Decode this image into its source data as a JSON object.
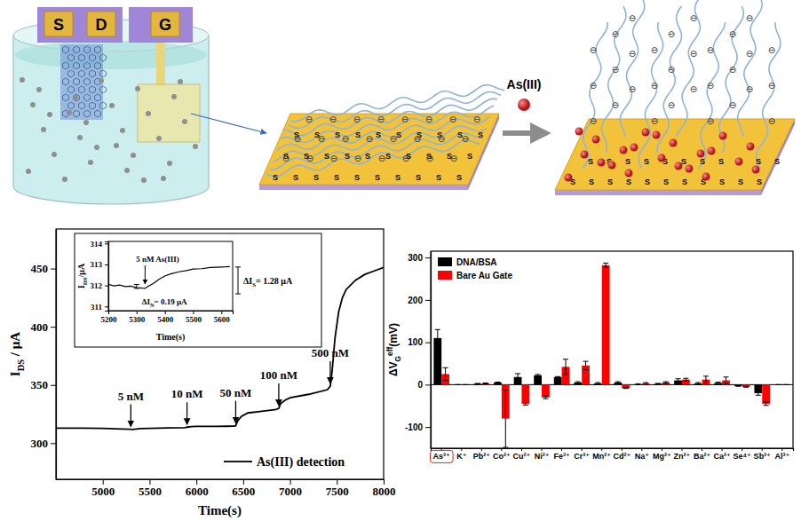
{
  "chart_data": [
    {
      "type": "line",
      "xlabel": "Time(s)",
      "ylabel": {
        "parts": [
          {
            "text": "I"
          },
          {
            "text": "DS",
            "sub": true
          },
          {
            "text": " / μA"
          }
        ]
      },
      "xlim": [
        4500,
        8000
      ],
      "xticks": [
        5000,
        5500,
        6000,
        6500,
        7000,
        7500,
        8000
      ],
      "ylim": [
        269,
        484
      ],
      "yticks": [
        300,
        350,
        400,
        450
      ],
      "legend": "lower right",
      "x": [
        4500,
        4800,
        5000,
        5200,
        5300,
        5320,
        5340,
        5400,
        5500,
        5600,
        5700,
        5880,
        5900,
        5950,
        6000,
        6200,
        6400,
        6420,
        6440,
        6480,
        6550,
        6700,
        6850,
        6880,
        6900,
        6950,
        7000,
        7200,
        7400,
        7430,
        7450,
        7480,
        7520,
        7560,
        7600,
        7700,
        7800,
        7900,
        8000
      ],
      "series": [
        {
          "name": "As(III) detection",
          "color": "#000000",
          "values": [
            313,
            313,
            312.8,
            312.2,
            312,
            311.8,
            312,
            312.5,
            312.8,
            313,
            313.2,
            313.3,
            313.8,
            314.3,
            314.5,
            314.5,
            314.6,
            315,
            319,
            323,
            326,
            327.5,
            329,
            330,
            334,
            337,
            339,
            342,
            346,
            349,
            362,
            390,
            413,
            425,
            432,
            440,
            445,
            448,
            451
          ]
        }
      ],
      "annotations": [
        {
          "text": "5 nM",
          "x": 5300,
          "y": 312
        },
        {
          "text": "10 nM",
          "x": 5900,
          "y": 313.8
        },
        {
          "text": "50 nM",
          "x": 6420,
          "y": 315
        },
        {
          "text": "100 nM",
          "x": 6880,
          "y": 330
        },
        {
          "text": "500 nM",
          "x": 7430,
          "y": 349
        }
      ]
    },
    {
      "type": "line",
      "xlabel": "Time(s)",
      "ylabel": {
        "parts": [
          {
            "text": "I"
          },
          {
            "text": "DS",
            "sub": true
          },
          {
            "text": "/μA"
          }
        ]
      },
      "xlim": [
        5200,
        5640
      ],
      "xticks": [
        5200,
        5300,
        5400,
        5500,
        5600
      ],
      "ylim": [
        310.8,
        314.1
      ],
      "yticks": [
        311,
        312,
        313,
        314
      ],
      "x": [
        5200,
        5220,
        5240,
        5260,
        5280,
        5300,
        5320,
        5330,
        5340,
        5360,
        5380,
        5400,
        5420,
        5450,
        5480,
        5500,
        5530,
        5560,
        5600,
        5630
      ],
      "series": [
        {
          "color": "#000000",
          "values": [
            312.05,
            311.98,
            312.02,
            311.95,
            311.97,
            311.9,
            311.87,
            311.86,
            311.95,
            312.1,
            312.3,
            312.45,
            312.55,
            312.65,
            312.72,
            312.78,
            312.8,
            312.86,
            312.88,
            312.9
          ]
        }
      ],
      "annotations": [
        {
          "text": "5 nM As(III)",
          "x": 5330,
          "y": 311.86
        },
        {
          "parts": [
            {
              "text": "ΔI"
            },
            {
              "text": "N",
              "sub": true
            },
            {
              "text": "= 0.19 μA"
            }
          ],
          "x": 5300,
          "y_range": [
            311.86,
            312.05
          ]
        },
        {
          "parts": [
            {
              "text": "ΔI"
            },
            {
              "text": "S",
              "sub": true
            },
            {
              "text": "= 1.28 μA"
            }
          ],
          "x": 5640,
          "y_range": [
            311.6,
            312.88
          ]
        }
      ]
    },
    {
      "type": "bar",
      "ylabel": {
        "parts": [
          {
            "text": "ΔV"
          },
          {
            "text": "G",
            "sub": true
          },
          {
            "text": "eff",
            "sup": true
          },
          {
            "text": "(mV)"
          }
        ]
      },
      "ylim": [
        -150,
        315
      ],
      "yticks": [
        -100,
        0,
        100,
        200,
        300
      ],
      "legend": "upper left",
      "categories": [
        "As³⁺",
        "K⁺",
        "Pb²⁺",
        "Co²⁺",
        "Cu²⁺",
        "Ni²⁺",
        "Fe³⁺",
        "Cr³⁺",
        "Mn²⁺",
        "Cd²⁺",
        "Na⁺",
        "Mg²⁺",
        "Zn²⁺",
        "Ba²⁺",
        "Ca²⁺",
        "Se⁴⁺",
        "Sb³⁺",
        "Al³⁺"
      ],
      "series": [
        {
          "name": "DNA/BSA",
          "color": "#000000",
          "values": [
            110,
            0,
            2,
            5,
            18,
            22,
            18,
            5,
            3,
            5,
            1,
            2,
            10,
            3,
            4,
            -3,
            -20,
            0
          ],
          "errors": [
            20,
            0,
            1,
            1,
            8,
            2,
            1,
            2,
            2,
            2,
            1,
            1,
            4,
            2,
            2,
            1,
            5,
            0
          ]
        },
        {
          "name": "Bare Au Gate",
          "color": "#ff0000",
          "values": [
            25,
            0,
            3,
            -80,
            -45,
            -30,
            42,
            45,
            282,
            -8,
            3,
            5,
            12,
            12,
            10,
            -5,
            -45,
            0
          ],
          "errors": [
            15,
            0,
            1,
            68,
            3,
            3,
            18,
            10,
            5,
            1,
            2,
            2,
            3,
            8,
            8,
            1,
            4,
            0
          ]
        }
      ]
    }
  ],
  "diagram": {
    "chips": [
      "S",
      "D",
      "G"
    ],
    "arrow_label": "As(III)",
    "thiol": "S",
    "charge": "⊖"
  }
}
